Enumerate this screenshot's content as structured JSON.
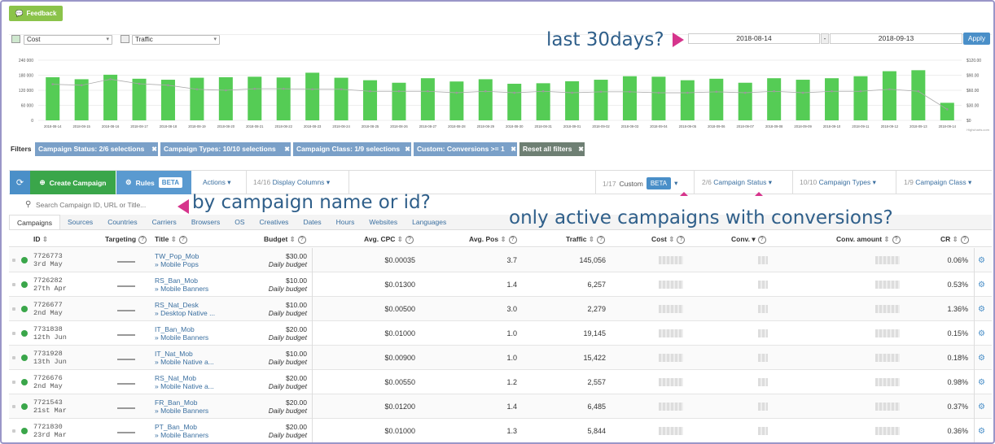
{
  "feedback_label": "Feedback",
  "chart_selects": {
    "left": "Cost",
    "right": "Traffic"
  },
  "date": {
    "from": "2018-08-14",
    "to": "2018-09-13",
    "sep": "-",
    "apply": "Apply"
  },
  "annotations": {
    "last30": "last 30days?",
    "byname": "by campaign name or id?",
    "onlyactive": "only active campaigns with conversions?"
  },
  "chart_data": {
    "type": "bar",
    "categories": [
      "2018-08-14",
      "2018-08-15",
      "2018-08-16",
      "2018-08-17",
      "2018-08-18",
      "2018-08-19",
      "2018-08-20",
      "2018-08-21",
      "2018-08-22",
      "2018-08-23",
      "2018-08-24",
      "2018-08-25",
      "2018-08-26",
      "2018-08-27",
      "2018-08-28",
      "2018-08-29",
      "2018-08-30",
      "2018-08-31",
      "2018-09-01",
      "2018-09-02",
      "2018-09-03",
      "2018-09-04",
      "2018-09-05",
      "2018-09-06",
      "2018-09-07",
      "2018-09-08",
      "2018-09-09",
      "2018-09-10",
      "2018-09-11",
      "2018-09-12",
      "2018-09-13",
      "2018-09-14"
    ],
    "series": [
      {
        "values": [
          172000,
          164000,
          182000,
          166000,
          162000,
          170000,
          172000,
          174000,
          171000,
          190000,
          170000,
          160000,
          150000,
          168000,
          155000,
          164000,
          146000,
          148000,
          156000,
          162000,
          176000,
          174000,
          160000,
          166000,
          150000,
          168000,
          162000,
          168000,
          176000,
          196000,
          200000,
          70000
        ]
      },
      {
        "values": [
          72,
          70,
          82,
          73,
          70,
          62,
          60,
          63,
          63,
          62,
          62,
          58,
          58,
          58,
          55,
          58,
          55,
          58,
          55,
          57,
          57,
          55,
          55,
          57,
          55,
          58,
          55,
          58,
          58,
          62,
          58,
          22
        ]
      }
    ],
    "yticks_left": [
      "240 000",
      "180 000",
      "120 000",
      "60 000",
      "0"
    ],
    "yticks_right": [
      "$120.00",
      "$90.00",
      "$60.00",
      "$30.00",
      "$0"
    ],
    "ylim_left": [
      0,
      240000
    ],
    "ylim_right": [
      0,
      120
    ],
    "credit": "Highcharts.com"
  },
  "filters": {
    "label": "Filters",
    "chips": [
      "Campaign Status: 2/6 selections",
      "Campaign Types: 10/10 selections",
      "Campaign Class: 1/9 selections",
      "Custom: Conversions >= 1"
    ],
    "reset": "Reset all filters"
  },
  "toolbar": {
    "create": "Create Campaign",
    "rules": "Rules",
    "beta": "BETA",
    "actions": "Actions",
    "display_count": "14/16",
    "display": "Display Columns",
    "custom_count": "1/17",
    "custom": "Custom",
    "status_count": "2/6",
    "status": "Campaign Status",
    "types_count": "10/10",
    "types": "Campaign Types",
    "class_count": "1/9",
    "class": "Campaign Class"
  },
  "search_placeholder": "Search Campaign ID, URL or Title...",
  "tabs": [
    "Campaigns",
    "Sources",
    "Countries",
    "Carriers",
    "Browsers",
    "OS",
    "Creatives",
    "Dates",
    "Hours",
    "Websites",
    "Languages"
  ],
  "columns": {
    "id": "ID",
    "targeting": "Targeting",
    "title": "Title",
    "budget": "Budget",
    "cpc": "Avg. CPC",
    "pos": "Avg. Pos",
    "traffic": "Traffic",
    "cost": "Cost",
    "conv": "Conv.",
    "convamt": "Conv. amount",
    "cr": "CR"
  },
  "rows": [
    {
      "id": "7726773",
      "date": "3rd May",
      "title": "TW_Pop_Mob",
      "sub": "» Mobile Pops",
      "budget": "$30.00",
      "budget_type": "Daily budget",
      "cpc": "$0.00035",
      "pos": "3.7",
      "traffic": "145,056",
      "cr": "0.06%"
    },
    {
      "id": "7726282",
      "date": "27th Apr",
      "title": "RS_Ban_Mob",
      "sub": "» Mobile Banners",
      "budget": "$10.00",
      "budget_type": "Daily budget",
      "cpc": "$0.01300",
      "pos": "1.4",
      "traffic": "6,257",
      "cr": "0.53%"
    },
    {
      "id": "7726677",
      "date": "2nd May",
      "title": "RS_Nat_Desk",
      "sub": "» Desktop Native ...",
      "budget": "$10.00",
      "budget_type": "Daily budget",
      "cpc": "$0.00500",
      "pos": "3.0",
      "traffic": "2,279",
      "cr": "1.36%"
    },
    {
      "id": "7731838",
      "date": "12th Jun",
      "title": "IT_Ban_Mob",
      "sub": "» Mobile Banners",
      "budget": "$20.00",
      "budget_type": "Daily budget",
      "cpc": "$0.01000",
      "pos": "1.0",
      "traffic": "19,145",
      "cr": "0.15%"
    },
    {
      "id": "7731928",
      "date": "13th Jun",
      "title": "IT_Nat_Mob",
      "sub": "» Mobile Native a...",
      "budget": "$10.00",
      "budget_type": "Daily budget",
      "cpc": "$0.00900",
      "pos": "1.0",
      "traffic": "15,422",
      "cr": "0.18%"
    },
    {
      "id": "7726676",
      "date": "2nd May",
      "title": "RS_Nat_Mob",
      "sub": "» Mobile Native a...",
      "budget": "$20.00",
      "budget_type": "Daily budget",
      "cpc": "$0.00550",
      "pos": "1.2",
      "traffic": "2,557",
      "cr": "0.98%"
    },
    {
      "id": "7721543",
      "date": "21st Mar",
      "title": "FR_Ban_Mob",
      "sub": "» Mobile Banners",
      "budget": "$20.00",
      "budget_type": "Daily budget",
      "cpc": "$0.01200",
      "pos": "1.4",
      "traffic": "6,485",
      "cr": "0.37%"
    },
    {
      "id": "7721830",
      "date": "23rd Mar",
      "title": "PT_Ban_Mob",
      "sub": "» Mobile Banners",
      "budget": "$20.00",
      "budget_type": "Daily budget",
      "cpc": "$0.01000",
      "pos": "1.3",
      "traffic": "5,844",
      "cr": "0.36%"
    }
  ]
}
